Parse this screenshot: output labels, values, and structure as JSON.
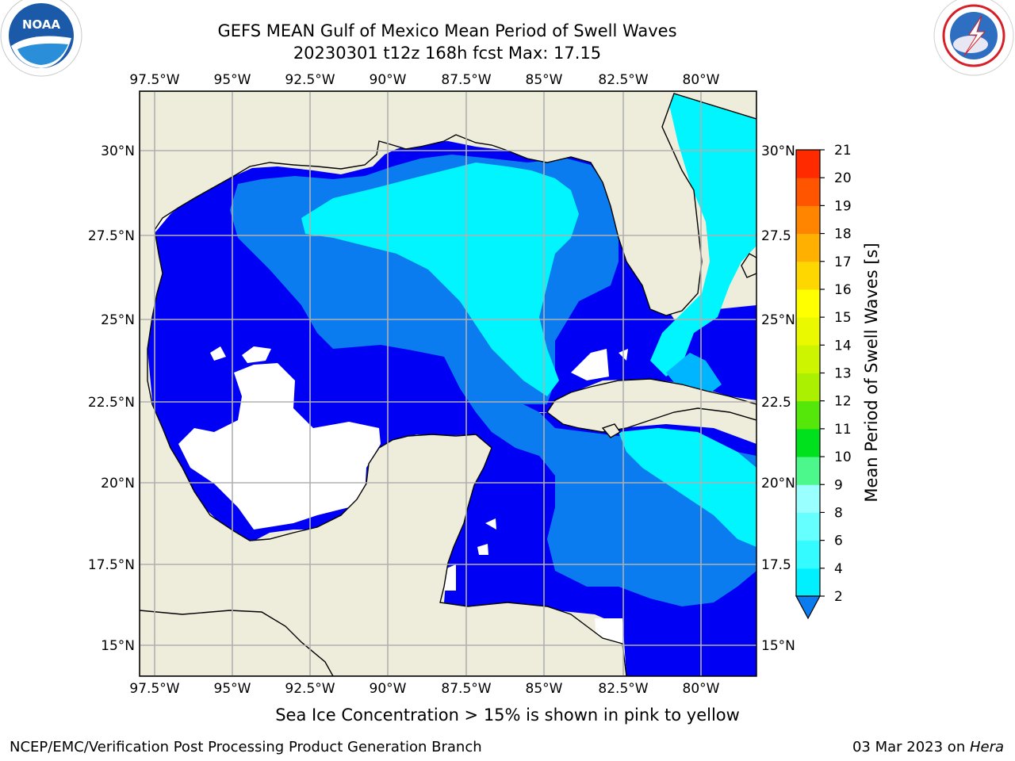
{
  "title_line1": "GEFS MEAN Gulf of Mexico Mean Period of Swell Waves",
  "title_line2": "20230301 t12z 168h fcst   Max: 17.15",
  "logos": {
    "left": "NOAA",
    "right": "NATIONAL WEATHER SERVICE"
  },
  "map": {
    "lon_labels": [
      "97.5°W",
      "95°W",
      "92.5°W",
      "90°W",
      "87.5°W",
      "85°W",
      "82.5°W",
      "80°W"
    ],
    "lat_labels_left": [
      "30°N",
      "27.5°N",
      "25°N",
      "22.5°N",
      "20°N",
      "17.5°N",
      "15°N"
    ],
    "lat_labels_right": [
      "30°N",
      "27.5",
      "25°N",
      "22.5",
      "20°N",
      "17.5",
      "15°N"
    ],
    "colors": {
      "land": "#eeeddc",
      "deep_blue": "#0000f5",
      "mid_blue": "#0b7cf0",
      "light_blue": "#00b5ff",
      "cyan": "#00f5ff",
      "grid": "#b0b0b0"
    }
  },
  "colorbar": {
    "label": "Mean Period of Swell Waves [s]",
    "ticks": [
      "2",
      "4",
      "6",
      "8",
      "9",
      "10",
      "11",
      "12",
      "13",
      "14",
      "15",
      "16",
      "17",
      "18",
      "19",
      "20",
      "21"
    ],
    "colors": [
      "#0b7cf0",
      "#00f0ff",
      "#33fbff",
      "#66ffff",
      "#99ffff",
      "#4cf78c",
      "#00e11e",
      "#55e60a",
      "#aaf000",
      "#cdf500",
      "#eaf800",
      "#ffff00",
      "#ffd700",
      "#ffb000",
      "#ff8400",
      "#ff5500",
      "#ff2a00",
      "#ff0000"
    ]
  },
  "footnote": "Sea Ice Concentration > 15% is shown in pink to yellow",
  "footer_left": "NCEP/EMC/Verification Post Processing Product Generation Branch",
  "footer_date": "03 Mar 2023 on ",
  "footer_machine": "Hera"
}
